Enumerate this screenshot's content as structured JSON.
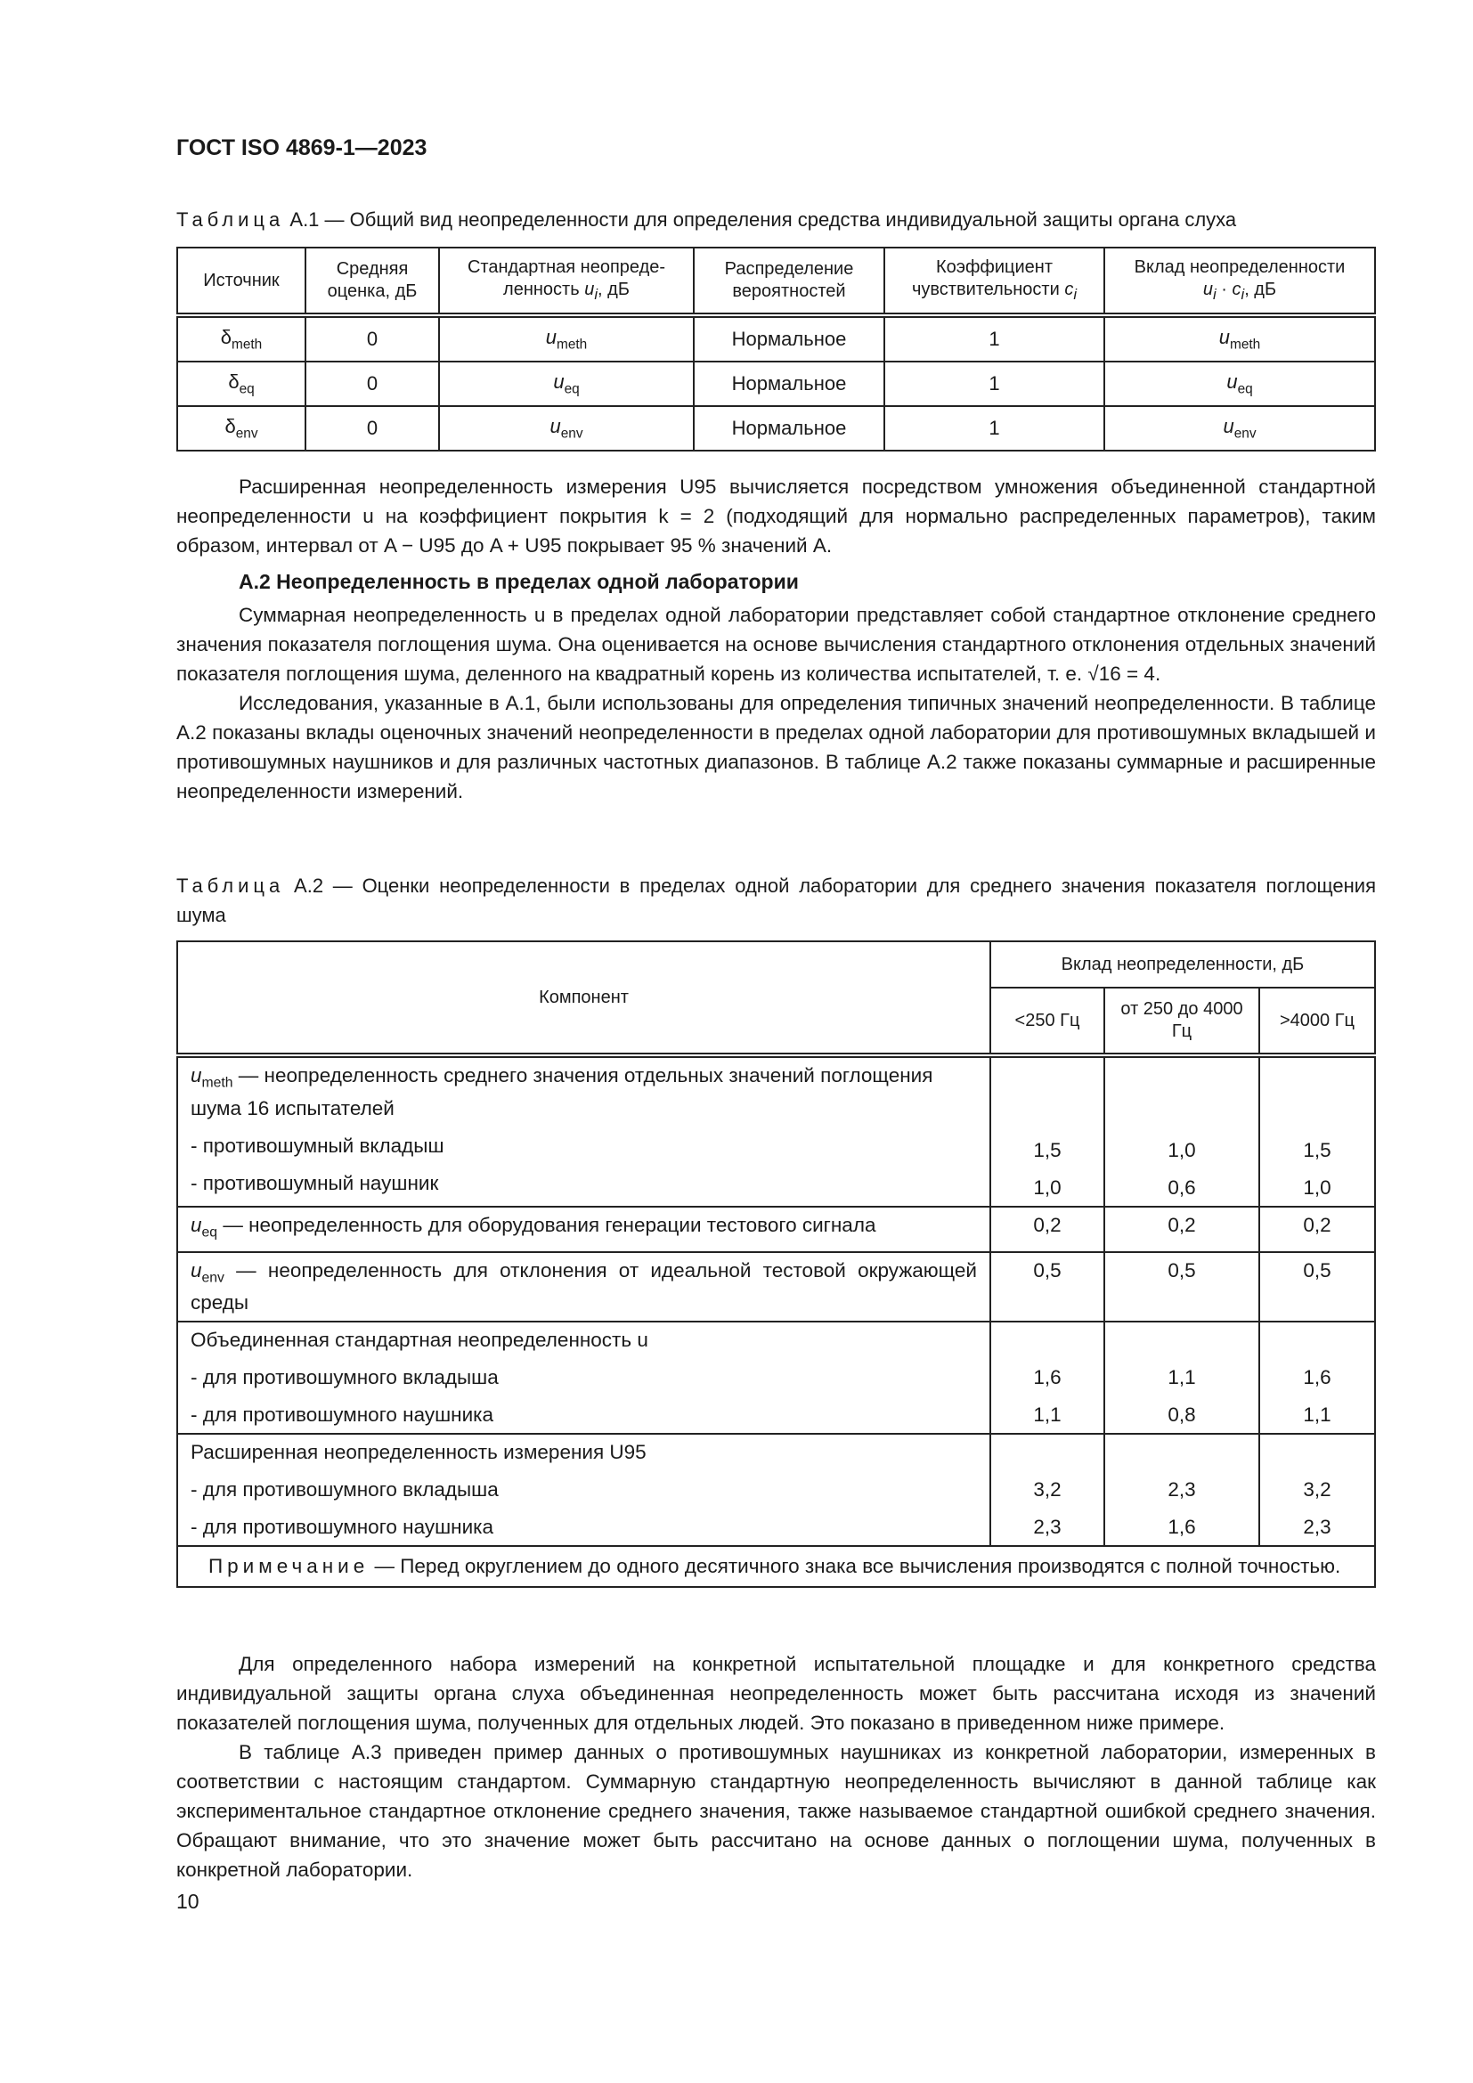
{
  "header": "ГОСТ ISO 4869-1—2023",
  "table1": {
    "caption_label": "Таблица",
    "caption_text": "А.1 — Общий вид неопределенности для определения средства индивидуальной защиты органа слуха",
    "columns": [
      "Источник",
      "Средняя оценка, дБ",
      "Стандартная неопределенность u_i, дБ",
      "Распределение вероятностей",
      "Коэффициент чувствительности c_i",
      "Вклад неопределенности u_i · c_i, дБ"
    ],
    "rows": [
      {
        "src": "δ",
        "src_sub": "meth",
        "mean": "0",
        "u": "u",
        "u_sub": "meth",
        "dist": "Нормальное",
        "c": "1",
        "contrib": "u",
        "contrib_sub": "meth"
      },
      {
        "src": "δ",
        "src_sub": "eq",
        "mean": "0",
        "u": "u",
        "u_sub": "eq",
        "dist": "Нормальное",
        "c": "1",
        "contrib": "u",
        "contrib_sub": "eq"
      },
      {
        "src": "δ",
        "src_sub": "env",
        "mean": "0",
        "u": "u",
        "u_sub": "env",
        "dist": "Нормальное",
        "c": "1",
        "contrib": "u",
        "contrib_sub": "env"
      }
    ]
  },
  "para1": "Расширенная неопределенность измерения U95 вычисляется посредством умножения объединенной стандартной неопределенности u на коэффициент покрытия k = 2 (подходящий для нормально распределенных параметров), таким образом, интервал от A − U95 до A + U95 покрывает 95 % значений A.",
  "section_heading": "А.2  Неопределенность в пределах одной лаборатории",
  "para2": "Суммарная неопределенность u в пределах одной лаборатории представляет собой стандартное отклонение среднего значения показателя поглощения шума. Она оценивается на основе вычисления стандартного отклонения отдельных значений показателя поглощения шума, деленного на квадратный корень из количества испытателей, т. е. √16 = 4.",
  "para3": "Исследования, указанные в А.1, были использованы для определения типичных значений неопределенности. В таблице А.2 показаны вклады оценочных значений неопределенности в пределах одной лаборатории для противошумных вкладышей и противошумных наушников и для различных частотных диапазонов. В таблице А.2 также показаны суммарные и расширенные неопределенности измерений.",
  "table2": {
    "caption_label": "Таблица",
    "caption_text": "А.2 — Оценки неопределенности в пределах одной лаборатории для среднего значения показателя поглощения шума",
    "col_component": "Компонент",
    "col_group": "Вклад неопределенности, дБ",
    "bands": [
      "<250 Гц",
      "от 250 до 4000 Гц",
      ">4000 Гц"
    ],
    "g1_title": "— неопределенность среднего значения отдельных значений поглощения шума 16 испытателей",
    "g1_sym": "u",
    "g1_sub": "meth",
    "g1_rows": [
      {
        "label": "- противошумный вкладыш",
        "v": [
          "1,5",
          "1,0",
          "1,5"
        ]
      },
      {
        "label": "- противошумный наушник",
        "v": [
          "1,0",
          "0,6",
          "1,0"
        ]
      }
    ],
    "g2_sym": "u",
    "g2_sub": "eq",
    "g2_title": "— неопределенность для оборудования генерации тестового сигнала",
    "g2_v": [
      "0,2",
      "0,2",
      "0,2"
    ],
    "g3_sym": "u",
    "g3_sub": "env",
    "g3_title": "— неопределенность для отклонения от идеальной тестовой окружающей среды",
    "g3_v": [
      "0,5",
      "0,5",
      "0,5"
    ],
    "g4_title": "Объединенная стандартная неопределенность u",
    "g4_rows": [
      {
        "label": "- для противошумного вкладыша",
        "v": [
          "1,6",
          "1,1",
          "1,6"
        ]
      },
      {
        "label": "- для противошумного наушника",
        "v": [
          "1,1",
          "0,8",
          "1,1"
        ]
      }
    ],
    "g5_title": "Расширенная неопределенность измерения U95",
    "g5_rows": [
      {
        "label": "- для противошумного вкладыша",
        "v": [
          "3,2",
          "2,3",
          "3,2"
        ]
      },
      {
        "label": "- для противошумного наушника",
        "v": [
          "2,3",
          "1,6",
          "2,3"
        ]
      }
    ],
    "note_label": "Примечание",
    "note_text": "— Перед округлением до одного десятичного знака все вычисления производятся с полной точностью."
  },
  "para4": "Для определенного набора измерений на конкретной испытательной площадке и для конкретного средства индивидуальной защиты органа слуха объединенная неопределенность может быть рассчитана исходя из значений показателей поглощения шума, полученных для отдельных людей. Это показано в приведенном ниже примере.",
  "para5": "В таблице А.3 приведен пример данных о противошумных наушниках из конкретной лаборатории, измеренных в соответствии с настоящим стандартом. Суммарную стандартную неопределенность вычисляют в данной таблице как экспериментальное стандартное отклонение среднего значения, также называемое стандартной ошибкой среднего значения. Обращают внимание, что это значение может быть рассчитано на основе данных о поглощении шума, полученных в конкретной лаборатории.",
  "page_number": "10"
}
